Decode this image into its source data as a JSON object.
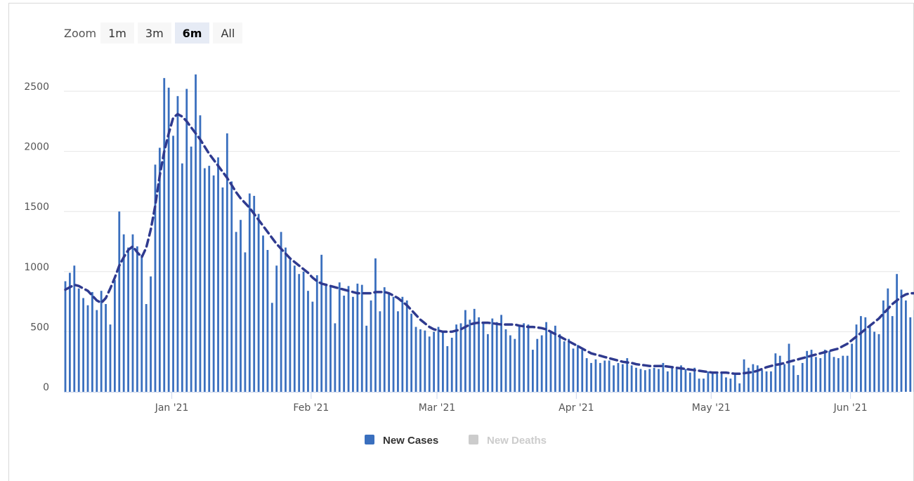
{
  "zoom": {
    "label": "Zoom",
    "buttons": [
      {
        "label": "1m",
        "active": false
      },
      {
        "label": "3m",
        "active": false
      },
      {
        "label": "6m",
        "active": true
      },
      {
        "label": "All",
        "active": false
      }
    ]
  },
  "colors": {
    "cases": "#3a6fbe",
    "average": "#2f3a8f",
    "deaths_inactive": "#cccccc",
    "grid": "#e6e6e6"
  },
  "chart_data": {
    "type": "bar",
    "title": "",
    "xlabel": "",
    "ylabel": "",
    "ylim": [
      0,
      2500
    ],
    "yticks": [
      0,
      500,
      1000,
      1500,
      2000,
      2500
    ],
    "x_start": "2020-12-08",
    "x_end": "2021-06-12",
    "x_ticks": [
      {
        "label": "Jan '21",
        "date": "2021-01-01"
      },
      {
        "label": "Feb '21",
        "date": "2021-02-01"
      },
      {
        "label": "Mar '21",
        "date": "2021-03-01"
      },
      {
        "label": "Apr '21",
        "date": "2021-04-01"
      },
      {
        "label": "May '21",
        "date": "2021-05-01"
      },
      {
        "label": "Jun '21",
        "date": "2021-06-01"
      }
    ],
    "grid": true,
    "legend_position": "bottom-center",
    "series": [
      {
        "name": "New Cases",
        "type": "bar",
        "visible": true,
        "start_date": "2020-12-08",
        "values": [
          920,
          990,
          1050,
          860,
          780,
          720,
          830,
          680,
          840,
          730,
          560,
          930,
          1500,
          1310,
          1200,
          1310,
          1210,
          1140,
          730,
          960,
          1890,
          2030,
          2610,
          2530,
          2130,
          2460,
          1900,
          2520,
          2040,
          2640,
          2300,
          1860,
          1880,
          1800,
          1950,
          1700,
          2150,
          1750,
          1330,
          1430,
          1160,
          1650,
          1630,
          1480,
          1300,
          1180,
          740,
          1050,
          1330,
          1200,
          1100,
          1050,
          980,
          1000,
          840,
          750,
          970,
          1140,
          900,
          880,
          570,
          910,
          800,
          880,
          790,
          900,
          890,
          550,
          760,
          1110,
          670,
          870,
          820,
          790,
          670,
          790,
          760,
          650,
          540,
          520,
          510,
          460,
          500,
          540,
          500,
          380,
          450,
          560,
          570,
          680,
          600,
          690,
          620,
          580,
          480,
          610,
          580,
          640,
          520,
          470,
          440,
          550,
          570,
          560,
          350,
          440,
          470,
          580,
          500,
          550,
          480,
          420,
          440,
          360,
          390,
          350,
          280,
          240,
          270,
          240,
          260,
          260,
          220,
          240,
          230,
          280,
          220,
          200,
          190,
          180,
          190,
          200,
          190,
          240,
          170,
          200,
          190,
          220,
          190,
          160,
          200,
          110,
          110,
          170,
          160,
          150,
          160,
          120,
          110,
          140,
          70,
          270,
          200,
          230,
          220,
          180,
          170,
          170,
          320,
          300,
          230,
          400,
          220,
          140,
          240,
          340,
          350,
          290,
          280,
          350,
          340,
          290,
          280,
          300,
          300,
          400,
          560,
          630,
          620,
          550,
          500,
          480,
          760,
          860,
          630,
          980,
          850,
          760,
          620,
          680,
          1000,
          720
        ]
      },
      {
        "name": "New Deaths",
        "type": "bar",
        "visible": false
      },
      {
        "name": "7-day average",
        "type": "line",
        "style": "dashed",
        "start_date": "2020-12-08",
        "values": [
          850,
          870,
          890,
          880,
          860,
          840,
          800,
          760,
          740,
          780,
          860,
          950,
          1050,
          1120,
          1180,
          1210,
          1160,
          1120,
          1200,
          1350,
          1550,
          1800,
          2000,
          2150,
          2280,
          2310,
          2290,
          2250,
          2200,
          2150,
          2100,
          2040,
          1980,
          1930,
          1880,
          1830,
          1780,
          1720,
          1660,
          1610,
          1570,
          1530,
          1480,
          1430,
          1380,
          1330,
          1280,
          1230,
          1190,
          1150,
          1110,
          1080,
          1050,
          1020,
          990,
          950,
          920,
          900,
          890,
          880,
          870,
          860,
          850,
          840,
          830,
          820,
          820,
          820,
          820,
          830,
          830,
          830,
          820,
          800,
          780,
          750,
          720,
          680,
          640,
          600,
          570,
          540,
          520,
          510,
          500,
          500,
          500,
          510,
          520,
          540,
          560,
          570,
          575,
          575,
          575,
          570,
          565,
          560,
          560,
          560,
          560,
          550,
          545,
          540,
          540,
          535,
          530,
          520,
          500,
          480,
          460,
          440,
          420,
          400,
          380,
          360,
          340,
          320,
          310,
          300,
          290,
          280,
          270,
          260,
          250,
          245,
          240,
          230,
          225,
          220,
          215,
          215,
          215,
          215,
          210,
          205,
          200,
          195,
          190,
          185,
          180,
          175,
          170,
          165,
          160,
          160,
          160,
          160,
          155,
          150,
          150,
          155,
          160,
          165,
          175,
          190,
          205,
          215,
          225,
          230,
          240,
          250,
          260,
          270,
          280,
          290,
          300,
          310,
          320,
          330,
          340,
          350,
          360,
          380,
          400,
          430,
          460,
          490,
          520,
          550,
          580,
          610,
          650,
          690,
          730,
          760,
          790,
          810,
          820,
          820,
          820
        ]
      }
    ]
  }
}
